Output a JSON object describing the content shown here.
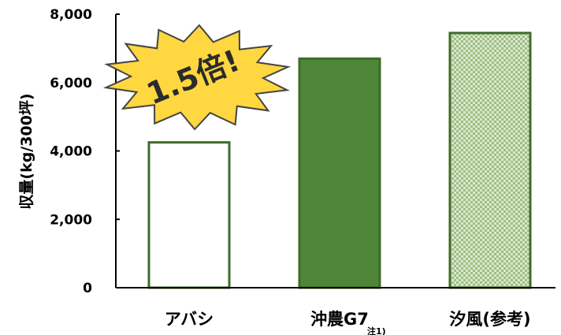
{
  "chart_data": {
    "type": "bar",
    "categories": [
      "アバシ",
      "沖農G7",
      "汐風(参考)"
    ],
    "values": [
      4250,
      6700,
      7450
    ],
    "ylabel": "収量(kg/300坪)",
    "xlabel": "",
    "ylim": [
      0,
      8000
    ],
    "yticks": [
      "0",
      "2,000",
      "4,000",
      "6,000",
      "8,000"
    ],
    "category_note": {
      "category_index": 1,
      "text": "注1)"
    },
    "bar_styles": [
      {
        "fill": "#ffffff",
        "stroke": "#3f6b2a",
        "pattern": "none"
      },
      {
        "fill": "#4f8536",
        "stroke": "#3f6b2a",
        "pattern": "none"
      },
      {
        "fill": "#c7dcb4",
        "stroke": "#3f6b2a",
        "pattern": "checker"
      }
    ],
    "annotation": {
      "text": "1.5倍!",
      "shape": "starburst",
      "fill": "#ffd740",
      "stroke": "#444444"
    },
    "grid": false
  }
}
